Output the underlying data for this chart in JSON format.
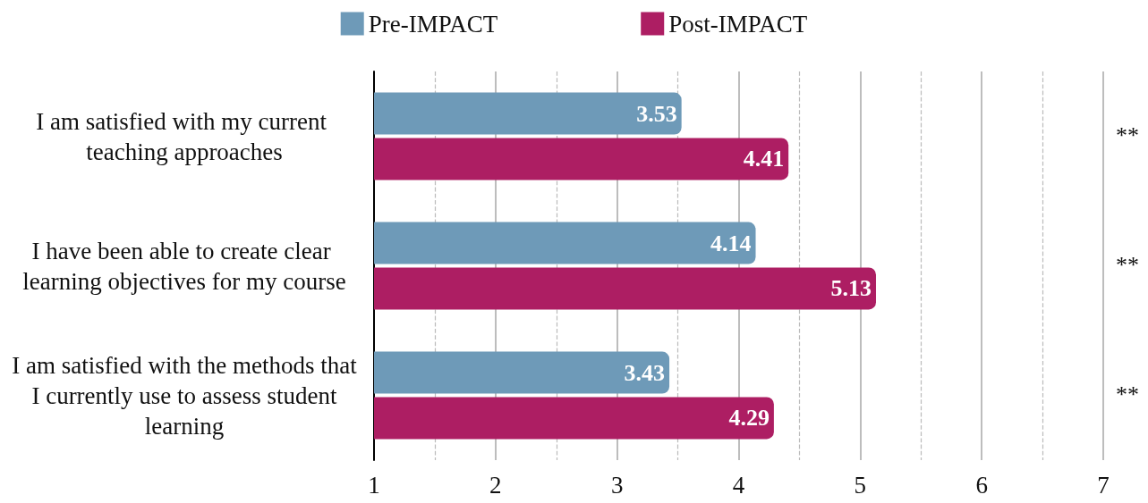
{
  "chart_data": {
    "type": "bar",
    "orientation": "horizontal",
    "categories": [
      "I am satisfied with my current teaching approaches",
      "I have been able to create clear learning objectives for my course",
      "I am satisfied with the methods that I currently use to assess student learning"
    ],
    "series": [
      {
        "name": "Pre-IMPACT",
        "color": "#6e9ab8",
        "values": [
          3.53,
          4.14,
          3.43
        ]
      },
      {
        "name": "Post-IMPACT",
        "color": "#ad1e63",
        "values": [
          4.41,
          5.13,
          4.29
        ]
      }
    ],
    "xlim": [
      1,
      7
    ],
    "xticks": [
      1,
      {
        "value": 1.5,
        "label": null
      },
      2,
      {
        "value": 2.5,
        "label": null
      },
      3,
      {
        "value": 3.5,
        "label": null
      },
      4,
      {
        "value": 4.5,
        "label": null
      },
      5,
      {
        "value": 5.5,
        "label": null
      },
      6,
      {
        "value": 6.5,
        "label": null
      },
      7
    ],
    "grid": "x",
    "legend": "top",
    "data_labels": true,
    "annotations": [
      "**",
      "**",
      "**"
    ]
  }
}
